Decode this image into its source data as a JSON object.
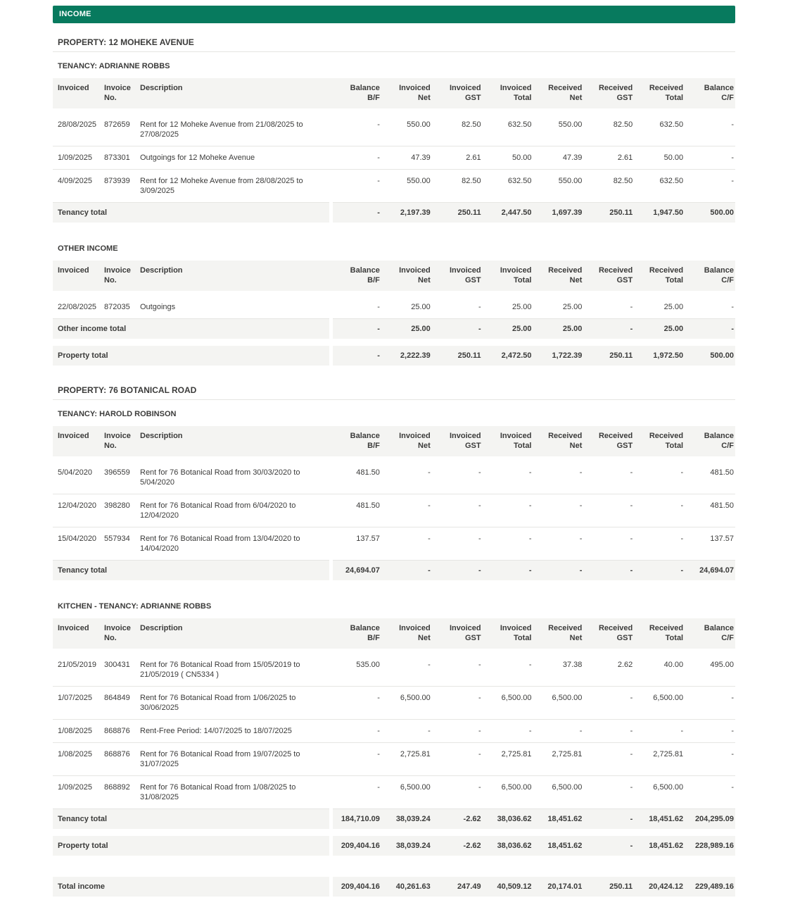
{
  "report": {
    "section_title": "INCOME",
    "bar_color": "#077a5e",
    "columns": [
      {
        "l1": "Invoiced",
        "l2": ""
      },
      {
        "l1": "Invoice",
        "l2": "No."
      },
      {
        "l1": "Description",
        "l2": ""
      },
      {
        "l1": "Balance",
        "l2": "B/F"
      },
      {
        "l1": "Invoiced",
        "l2": "Net"
      },
      {
        "l1": "Invoiced",
        "l2": "GST"
      },
      {
        "l1": "Invoiced",
        "l2": "Total"
      },
      {
        "l1": "Received",
        "l2": "Net"
      },
      {
        "l1": "Received",
        "l2": "GST"
      },
      {
        "l1": "Received",
        "l2": "Total"
      },
      {
        "l1": "Balance",
        "l2": "C/F"
      }
    ]
  },
  "properties": [
    {
      "title": "PROPERTY: 12 MOHEKE AVENUE",
      "sections": [
        {
          "title": "TENANCY: ADRIANNE ROBBS",
          "rows": [
            {
              "invoiced": "28/08/2025",
              "invoice_no": "872659",
              "description": "Rent for 12 Moheke Avenue from 21/08/2025 to 27/08/2025",
              "values": [
                "-",
                "550.00",
                "82.50",
                "632.50",
                "550.00",
                "82.50",
                "632.50",
                "-"
              ]
            },
            {
              "invoiced": "1/09/2025",
              "invoice_no": "873301",
              "description": "Outgoings for 12 Moheke Avenue",
              "values": [
                "-",
                "47.39",
                "2.61",
                "50.00",
                "47.39",
                "2.61",
                "50.00",
                "-"
              ]
            },
            {
              "invoiced": "4/09/2025",
              "invoice_no": "873939",
              "description": "Rent for 12 Moheke Avenue from 28/08/2025 to 3/09/2025",
              "values": [
                "-",
                "550.00",
                "82.50",
                "632.50",
                "550.00",
                "82.50",
                "632.50",
                "-"
              ]
            }
          ],
          "total": {
            "label": "Tenancy total",
            "values": [
              "-",
              "2,197.39",
              "250.11",
              "2,447.50",
              "1,697.39",
              "250.11",
              "1,947.50",
              "500.00"
            ]
          }
        },
        {
          "title": "OTHER INCOME",
          "rows": [
            {
              "invoiced": "22/08/2025",
              "invoice_no": "872035",
              "description": "Outgoings",
              "values": [
                "-",
                "25.00",
                "-",
                "25.00",
                "25.00",
                "-",
                "25.00",
                "-"
              ]
            }
          ],
          "total": {
            "label": "Other income total",
            "values": [
              "-",
              "25.00",
              "-",
              "25.00",
              "25.00",
              "-",
              "25.00",
              "-"
            ]
          }
        }
      ],
      "property_total": {
        "label": "Property total",
        "values": [
          "-",
          "2,222.39",
          "250.11",
          "2,472.50",
          "1,722.39",
          "250.11",
          "1,972.50",
          "500.00"
        ]
      }
    },
    {
      "title": "PROPERTY: 76 BOTANICAL ROAD",
      "sections": [
        {
          "title": "TENANCY: HAROLD ROBINSON",
          "rows": [
            {
              "invoiced": "5/04/2020",
              "invoice_no": "396559",
              "description": "Rent for 76 Botanical Road from 30/03/2020 to 5/04/2020",
              "values": [
                "481.50",
                "-",
                "-",
                "-",
                "-",
                "-",
                "-",
                "481.50"
              ]
            },
            {
              "invoiced": "12/04/2020",
              "invoice_no": "398280",
              "description": "Rent for 76 Botanical Road from 6/04/2020 to 12/04/2020",
              "values": [
                "481.50",
                "-",
                "-",
                "-",
                "-",
                "-",
                "-",
                "481.50"
              ]
            },
            {
              "invoiced": "15/04/2020",
              "invoice_no": "557934",
              "description": "Rent for 76 Botanical Road from 13/04/2020 to 14/04/2020",
              "values": [
                "137.57",
                "-",
                "-",
                "-",
                "-",
                "-",
                "-",
                "137.57"
              ]
            }
          ],
          "total": {
            "label": "Tenancy total",
            "values": [
              "24,694.07",
              "-",
              "-",
              "-",
              "-",
              "-",
              "-",
              "24,694.07"
            ]
          }
        },
        {
          "title": "KITCHEN - TENANCY: ADRIANNE ROBBS",
          "rows": [
            {
              "invoiced": "21/05/2019",
              "invoice_no": "300431",
              "description": "Rent for 76 Botanical Road from 15/05/2019 to 21/05/2019 ( CN5334 )",
              "values": [
                "535.00",
                "-",
                "-",
                "-",
                "37.38",
                "2.62",
                "40.00",
                "495.00"
              ]
            },
            {
              "invoiced": "1/07/2025",
              "invoice_no": "864849",
              "description": "Rent for 76 Botanical Road from 1/06/2025 to 30/06/2025",
              "values": [
                "-",
                "6,500.00",
                "-",
                "6,500.00",
                "6,500.00",
                "-",
                "6,500.00",
                "-"
              ]
            },
            {
              "invoiced": "1/08/2025",
              "invoice_no": "868876",
              "description": "Rent-Free Period: 14/07/2025 to 18/07/2025",
              "values": [
                "-",
                "-",
                "-",
                "-",
                "-",
                "-",
                "-",
                "-"
              ]
            },
            {
              "invoiced": "1/08/2025",
              "invoice_no": "868876",
              "description": "Rent for 76 Botanical Road from 19/07/2025 to 31/07/2025",
              "values": [
                "-",
                "2,725.81",
                "-",
                "2,725.81",
                "2,725.81",
                "-",
                "2,725.81",
                "-"
              ]
            },
            {
              "invoiced": "1/09/2025",
              "invoice_no": "868892",
              "description": "Rent for 76 Botanical Road from 1/08/2025 to 31/08/2025",
              "values": [
                "-",
                "6,500.00",
                "-",
                "6,500.00",
                "6,500.00",
                "-",
                "6,500.00",
                "-"
              ]
            }
          ],
          "total": {
            "label": "Tenancy total",
            "values": [
              "184,710.09",
              "38,039.24",
              "-2.62",
              "38,036.62",
              "18,451.62",
              "-",
              "18,451.62",
              "204,295.09"
            ]
          }
        }
      ],
      "property_total": {
        "label": "Property total",
        "values": [
          "209,404.16",
          "38,039.24",
          "-2.62",
          "38,036.62",
          "18,451.62",
          "-",
          "18,451.62",
          "228,989.16"
        ]
      }
    }
  ],
  "grand_total": {
    "label": "Total income",
    "values": [
      "209,404.16",
      "40,261.63",
      "247.49",
      "40,509.12",
      "20,174.01",
      "250.11",
      "20,424.12",
      "229,489.16"
    ]
  }
}
